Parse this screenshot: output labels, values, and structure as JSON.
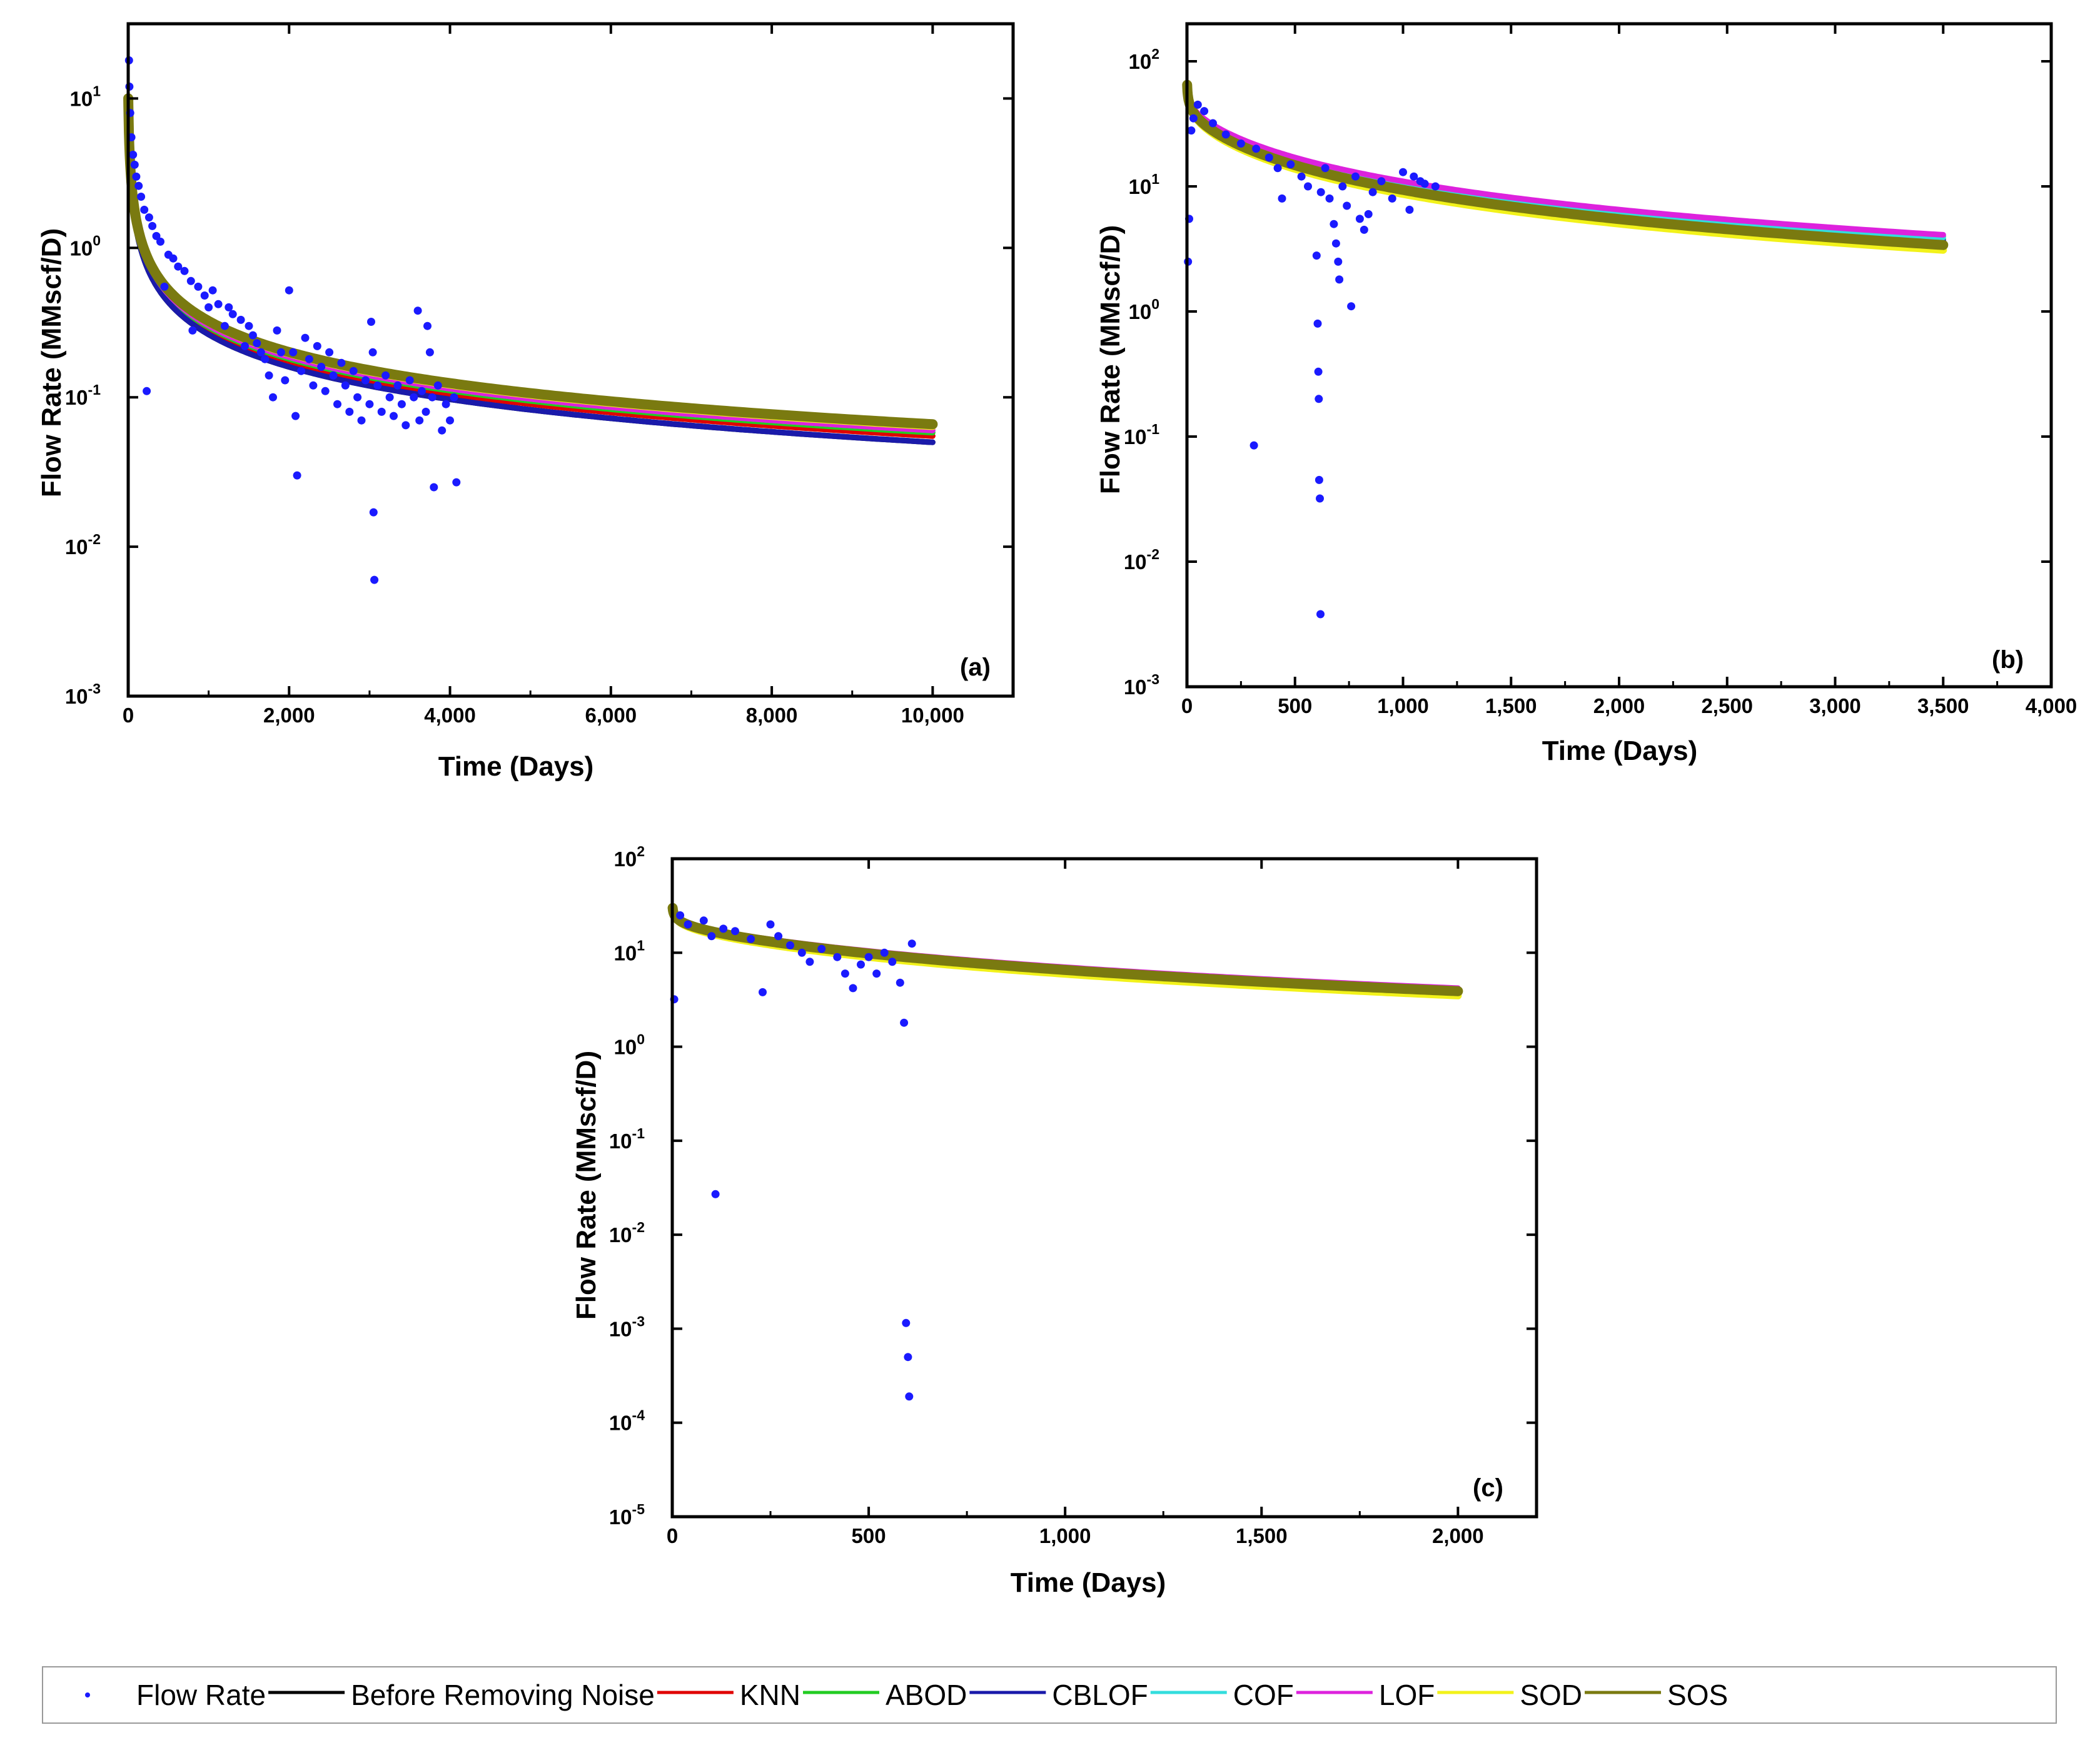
{
  "chart_data": [
    {
      "type": "scatter",
      "panel_label": "(a)",
      "xlabel": "Time (Days)",
      "ylabel": "Flow Rate (MMscf/D)",
      "xlim": [
        0,
        11000
      ],
      "ylim_log10": [
        -3,
        1.5
      ],
      "y_scale": "log",
      "x_ticks": [
        0,
        2000,
        4000,
        6000,
        8000,
        10000
      ],
      "x_tick_labels": [
        "0",
        "2,000",
        "4,000",
        "6,000",
        "8,000",
        "10,000"
      ],
      "y_ticks": [
        {
          "base": "10",
          "exp": "-3",
          "value": 0.001
        },
        {
          "base": "10",
          "exp": "-2",
          "value": 0.01
        },
        {
          "base": "10",
          "exp": "-1",
          "value": 0.1
        },
        {
          "base": "10",
          "exp": "0",
          "value": 1
        },
        {
          "base": "10",
          "exp": "1",
          "value": 10
        }
      ],
      "fit_x_max": 10000,
      "fit_q_at_end": {
        "Before Removing Noise": 0.05,
        "KNN": 0.055,
        "ABOD": 0.058,
        "CBLOF": 0.05,
        "COF": 0.06,
        "LOF": 0.06,
        "SOD": 0.064,
        "SOS": 0.066
      },
      "decline": {
        "qi": 11,
        "b": 1.5,
        "t0": 1
      },
      "scatter_points": [
        [
          10,
          18
        ],
        [
          15,
          12
        ],
        [
          25,
          8
        ],
        [
          40,
          5.5
        ],
        [
          60,
          4.2
        ],
        [
          80,
          3.6
        ],
        [
          100,
          3.0
        ],
        [
          130,
          2.6
        ],
        [
          160,
          2.2
        ],
        [
          200,
          1.8
        ],
        [
          230,
          0.11
        ],
        [
          260,
          1.6
        ],
        [
          300,
          1.4
        ],
        [
          350,
          1.2
        ],
        [
          400,
          1.1
        ],
        [
          450,
          0.55
        ],
        [
          500,
          0.9
        ],
        [
          560,
          0.85
        ],
        [
          620,
          0.75
        ],
        [
          700,
          0.7
        ],
        [
          780,
          0.6
        ],
        [
          800,
          0.28
        ],
        [
          870,
          0.55
        ],
        [
          950,
          0.48
        ],
        [
          1000,
          0.4
        ],
        [
          1050,
          0.52
        ],
        [
          1120,
          0.42
        ],
        [
          1200,
          0.3
        ],
        [
          1250,
          0.4
        ],
        [
          1300,
          0.36
        ],
        [
          1400,
          0.33
        ],
        [
          1450,
          0.22
        ],
        [
          1500,
          0.3
        ],
        [
          1550,
          0.26
        ],
        [
          1600,
          0.23
        ],
        [
          1650,
          0.2
        ],
        [
          1700,
          0.18
        ],
        [
          1750,
          0.14
        ],
        [
          1800,
          0.1
        ],
        [
          1850,
          0.28
        ],
        [
          1900,
          0.2
        ],
        [
          1950,
          0.13
        ],
        [
          2000,
          0.52
        ],
        [
          2050,
          0.2
        ],
        [
          2080,
          0.075
        ],
        [
          2100,
          0.03
        ],
        [
          2150,
          0.15
        ],
        [
          2200,
          0.25
        ],
        [
          2250,
          0.18
        ],
        [
          2300,
          0.12
        ],
        [
          2350,
          0.22
        ],
        [
          2400,
          0.16
        ],
        [
          2450,
          0.11
        ],
        [
          2500,
          0.2
        ],
        [
          2550,
          0.14
        ],
        [
          2600,
          0.09
        ],
        [
          2650,
          0.17
        ],
        [
          2700,
          0.12
        ],
        [
          2750,
          0.08
        ],
        [
          2800,
          0.15
        ],
        [
          2850,
          0.1
        ],
        [
          2900,
          0.07
        ],
        [
          2950,
          0.13
        ],
        [
          3000,
          0.09
        ],
        [
          3020,
          0.32
        ],
        [
          3040,
          0.2
        ],
        [
          3050,
          0.017
        ],
        [
          3060,
          0.006
        ],
        [
          3100,
          0.12
        ],
        [
          3150,
          0.08
        ],
        [
          3200,
          0.14
        ],
        [
          3250,
          0.1
        ],
        [
          3300,
          0.075
        ],
        [
          3350,
          0.12
        ],
        [
          3400,
          0.09
        ],
        [
          3450,
          0.065
        ],
        [
          3500,
          0.13
        ],
        [
          3550,
          0.1
        ],
        [
          3600,
          0.38
        ],
        [
          3620,
          0.07
        ],
        [
          3650,
          0.11
        ],
        [
          3700,
          0.08
        ],
        [
          3720,
          0.3
        ],
        [
          3750,
          0.2
        ],
        [
          3780,
          0.1
        ],
        [
          3800,
          0.025
        ],
        [
          3850,
          0.12
        ],
        [
          3900,
          0.06
        ],
        [
          3950,
          0.09
        ],
        [
          4000,
          0.07
        ],
        [
          4050,
          0.1
        ],
        [
          4080,
          0.027
        ]
      ]
    },
    {
      "type": "scatter",
      "panel_label": "(b)",
      "xlabel": "Time (Days)",
      "ylabel": "Flow Rate (MMscf/D)",
      "xlim": [
        0,
        4000
      ],
      "ylim_log10": [
        -3,
        2.3
      ],
      "y_scale": "log",
      "x_ticks": [
        0,
        500,
        1000,
        1500,
        2000,
        2500,
        3000,
        3500,
        4000
      ],
      "x_tick_labels": [
        "0",
        "500",
        "1,000",
        "1,500",
        "2,000",
        "2,500",
        "3,000",
        "3,500",
        "4,000"
      ],
      "y_ticks": [
        {
          "base": "10",
          "exp": "-3",
          "value": 0.001
        },
        {
          "base": "10",
          "exp": "-2",
          "value": 0.01
        },
        {
          "base": "10",
          "exp": "-1",
          "value": 0.1
        },
        {
          "base": "10",
          "exp": "0",
          "value": 1
        },
        {
          "base": "10",
          "exp": "1",
          "value": 10
        },
        {
          "base": "10",
          "exp": "2",
          "value": 100
        }
      ],
      "fit_x_max": 3500,
      "fit_q_at_end": {
        "Before Removing Noise": 3.6,
        "KNN": 4.0,
        "ABOD": 3.8,
        "CBLOF": 3.7,
        "COF": 3.9,
        "LOF": 4.1,
        "SOD": 3.1,
        "SOS": 3.4
      },
      "decline": {
        "qi": 65,
        "b": 1.2,
        "t0": 10
      },
      "scatter_points": [
        [
          5,
          2.5
        ],
        [
          10,
          5.5
        ],
        [
          20,
          28
        ],
        [
          30,
          35
        ],
        [
          50,
          45
        ],
        [
          80,
          40
        ],
        [
          120,
          32
        ],
        [
          180,
          26
        ],
        [
          250,
          22
        ],
        [
          310,
          0.085
        ],
        [
          320,
          20
        ],
        [
          380,
          17
        ],
        [
          420,
          14
        ],
        [
          440,
          8
        ],
        [
          480,
          15
        ],
        [
          530,
          12
        ],
        [
          560,
          10
        ],
        [
          600,
          2.8
        ],
        [
          605,
          0.8
        ],
        [
          608,
          0.33
        ],
        [
          610,
          0.2
        ],
        [
          612,
          0.045
        ],
        [
          615,
          0.032
        ],
        [
          618,
          0.0038
        ],
        [
          620,
          9
        ],
        [
          640,
          14
        ],
        [
          660,
          8
        ],
        [
          680,
          5
        ],
        [
          690,
          3.5
        ],
        [
          700,
          2.5
        ],
        [
          705,
          1.8
        ],
        [
          720,
          10
        ],
        [
          740,
          7
        ],
        [
          760,
          1.1
        ],
        [
          780,
          12
        ],
        [
          800,
          5.5
        ],
        [
          820,
          4.5
        ],
        [
          840,
          6
        ],
        [
          860,
          9
        ],
        [
          900,
          11
        ],
        [
          950,
          8
        ],
        [
          1000,
          13
        ],
        [
          1030,
          6.5
        ],
        [
          1050,
          12
        ],
        [
          1080,
          11
        ],
        [
          1100,
          10.5
        ],
        [
          1150,
          10
        ]
      ]
    },
    {
      "type": "scatter",
      "panel_label": "(c)",
      "xlabel": "Time (Days)",
      "ylabel": "Flow Rate (MMscf/D)",
      "xlim": [
        0,
        2200
      ],
      "ylim_log10": [
        -5,
        2
      ],
      "y_scale": "log",
      "x_ticks": [
        0,
        500,
        1000,
        1500,
        2000
      ],
      "x_tick_labels": [
        "0",
        "500",
        "1,000",
        "1,500",
        "2,000"
      ],
      "y_ticks": [
        {
          "base": "10",
          "exp": "-5",
          "value": 1e-05
        },
        {
          "base": "10",
          "exp": "-4",
          "value": 0.0001
        },
        {
          "base": "10",
          "exp": "-3",
          "value": 0.001
        },
        {
          "base": "10",
          "exp": "-2",
          "value": 0.01
        },
        {
          "base": "10",
          "exp": "-1",
          "value": 0.1
        },
        {
          "base": "10",
          "exp": "0",
          "value": 1
        },
        {
          "base": "10",
          "exp": "1",
          "value": 10
        },
        {
          "base": "10",
          "exp": "2",
          "value": 100
        }
      ],
      "fit_x_max": 2000,
      "fit_q_at_end": {
        "Before Removing Noise": 3.9,
        "KNN": 4.1,
        "ABOD": 4.0,
        "CBLOF": 3.9,
        "COF": 4.0,
        "LOF": 4.2,
        "SOD": 3.5,
        "SOS": 3.9
      },
      "decline": {
        "qi": 30,
        "b": 1.0,
        "t0": 15
      },
      "scatter_points": [
        [
          5,
          3.2
        ],
        [
          20,
          25
        ],
        [
          40,
          20
        ],
        [
          80,
          22
        ],
        [
          100,
          15
        ],
        [
          110,
          0.027
        ],
        [
          130,
          18
        ],
        [
          160,
          17
        ],
        [
          200,
          14
        ],
        [
          230,
          3.8
        ],
        [
          250,
          20
        ],
        [
          270,
          15
        ],
        [
          300,
          12
        ],
        [
          330,
          10
        ],
        [
          350,
          8
        ],
        [
          380,
          11
        ],
        [
          420,
          9
        ],
        [
          440,
          6
        ],
        [
          460,
          4.2
        ],
        [
          480,
          7.5
        ],
        [
          500,
          9
        ],
        [
          520,
          6
        ],
        [
          540,
          10
        ],
        [
          560,
          8
        ],
        [
          580,
          4.8
        ],
        [
          590,
          1.8
        ],
        [
          595,
          0.00115
        ],
        [
          600,
          0.0005
        ],
        [
          603,
          0.00019
        ],
        [
          610,
          12.5
        ]
      ]
    }
  ],
  "legend": {
    "items": [
      {
        "label": "Flow Rate",
        "color": "#1a1aff",
        "kind": "dot"
      },
      {
        "label": "Before Removing Noise",
        "color": "#000000",
        "kind": "line"
      },
      {
        "label": "KNN",
        "color": "#e00000",
        "kind": "line"
      },
      {
        "label": "ABOD",
        "color": "#22cc22",
        "kind": "line"
      },
      {
        "label": "CBLOF",
        "color": "#1a1aaa",
        "kind": "line"
      },
      {
        "label": "COF",
        "color": "#33dddd",
        "kind": "line"
      },
      {
        "label": "LOF",
        "color": "#dd22dd",
        "kind": "line"
      },
      {
        "label": "SOD",
        "color": "#f2f21a",
        "kind": "line"
      },
      {
        "label": "SOS",
        "color": "#7a7a10",
        "kind": "line"
      }
    ]
  }
}
